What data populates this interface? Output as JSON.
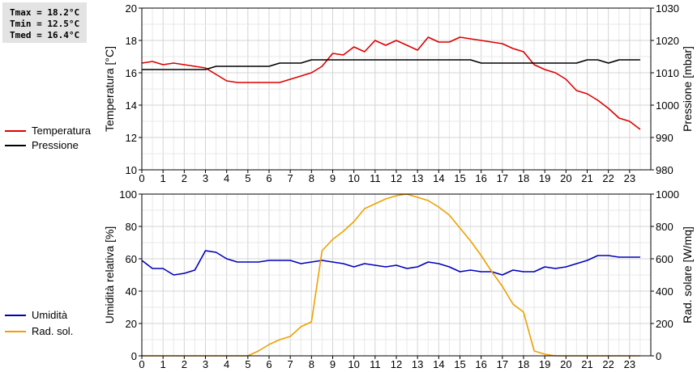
{
  "stats": {
    "tmax": "Tmax = 18.2°C",
    "tmin": "Tmin = 12.5°C",
    "tmed": "Tmed = 16.4°C"
  },
  "legend_top": [
    {
      "label": "Temperatura",
      "color": "#dd0000"
    },
    {
      "label": "Pressione",
      "color": "#000000"
    }
  ],
  "legend_bottom": [
    {
      "label": "Umidità",
      "color": "#0000bb"
    },
    {
      "label": "Rad. sol.",
      "color": "#f0a000"
    }
  ],
  "chart_data": [
    {
      "type": "line",
      "x_ticks": [
        0,
        1,
        2,
        3,
        4,
        5,
        6,
        7,
        8,
        9,
        10,
        11,
        12,
        13,
        14,
        15,
        16,
        17,
        18,
        19,
        20,
        21,
        22,
        23
      ],
      "ylabel": "Temperatura [°C]",
      "ylim": [
        10,
        20
      ],
      "y_ticks": [
        10,
        12,
        14,
        16,
        18,
        20
      ],
      "y2label": "Pressione [mbar]",
      "y2lim": [
        980,
        1030
      ],
      "y2_ticks": [
        980,
        990,
        1000,
        1010,
        1020,
        1030
      ],
      "grid": true,
      "series": [
        {
          "name": "Temperatura",
          "axis": "left",
          "color": "#dd0000",
          "x": [
            0,
            0.5,
            1,
            1.5,
            2,
            2.5,
            3,
            3.5,
            4,
            4.5,
            5,
            5.5,
            6,
            6.5,
            7,
            7.5,
            8,
            8.5,
            9,
            9.5,
            10,
            10.5,
            11,
            11.5,
            12,
            12.5,
            13,
            13.5,
            14,
            14.5,
            15,
            15.5,
            16,
            16.5,
            17,
            17.5,
            18,
            18.5,
            19,
            19.5,
            20,
            20.5,
            21,
            21.5,
            22,
            22.5,
            23,
            23.5
          ],
          "y": [
            16.6,
            16.7,
            16.5,
            16.6,
            16.5,
            16.4,
            16.3,
            15.9,
            15.5,
            15.4,
            15.4,
            15.4,
            15.4,
            15.4,
            15.6,
            15.8,
            16.0,
            16.4,
            17.2,
            17.1,
            17.6,
            17.3,
            18.0,
            17.7,
            18.0,
            17.7,
            17.4,
            18.2,
            17.9,
            17.9,
            18.2,
            18.1,
            18.0,
            17.9,
            17.8,
            17.5,
            17.3,
            16.5,
            16.2,
            16.0,
            15.6,
            14.9,
            14.7,
            14.3,
            13.8,
            13.2,
            13.0,
            12.5
          ]
        },
        {
          "name": "Pressione",
          "axis": "right",
          "color": "#000000",
          "x": [
            0,
            0.5,
            1,
            1.5,
            2,
            2.5,
            3,
            3.5,
            4,
            4.5,
            5,
            5.5,
            6,
            6.5,
            7,
            7.5,
            8,
            8.5,
            9,
            9.5,
            10,
            10.5,
            11,
            11.5,
            12,
            12.5,
            13,
            13.5,
            14,
            14.5,
            15,
            15.5,
            16,
            16.5,
            17,
            17.5,
            18,
            18.5,
            19,
            19.5,
            20,
            20.5,
            21,
            21.5,
            22,
            22.5,
            23,
            23.5
          ],
          "y": [
            1011,
            1011,
            1011,
            1011,
            1011,
            1011,
            1011,
            1012,
            1012,
            1012,
            1012,
            1012,
            1012,
            1013,
            1013,
            1013,
            1014,
            1014,
            1014,
            1014,
            1014,
            1014,
            1014,
            1014,
            1014,
            1014,
            1014,
            1014,
            1014,
            1014,
            1014,
            1014,
            1013,
            1013,
            1013,
            1013,
            1013,
            1013,
            1013,
            1013,
            1013,
            1013,
            1014,
            1014,
            1013,
            1014,
            1014,
            1014
          ]
        }
      ]
    },
    {
      "type": "line",
      "x_ticks": [
        0,
        1,
        2,
        3,
        4,
        5,
        6,
        7,
        8,
        9,
        10,
        11,
        12,
        13,
        14,
        15,
        16,
        17,
        18,
        19,
        20,
        21,
        22,
        23
      ],
      "ylabel": "Umidità relativa [%]",
      "ylim": [
        0,
        100
      ],
      "y_ticks": [
        0,
        20,
        40,
        60,
        80,
        100
      ],
      "y2label": "Rad. solare [W/mq]",
      "y2lim": [
        0,
        1000
      ],
      "y2_ticks": [
        0,
        200,
        400,
        600,
        800,
        1000
      ],
      "grid": true,
      "series": [
        {
          "name": "Umidità",
          "axis": "left",
          "color": "#0000bb",
          "x": [
            0,
            0.5,
            1,
            1.5,
            2,
            2.5,
            3,
            3.5,
            4,
            4.5,
            5,
            5.5,
            6,
            6.5,
            7,
            7.5,
            8,
            8.5,
            9,
            9.5,
            10,
            10.5,
            11,
            11.5,
            12,
            12.5,
            13,
            13.5,
            14,
            14.5,
            15,
            15.5,
            16,
            16.5,
            17,
            17.5,
            18,
            18.5,
            19,
            19.5,
            20,
            20.5,
            21,
            21.5,
            22,
            22.5,
            23,
            23.5
          ],
          "y": [
            59,
            54,
            54,
            50,
            51,
            53,
            65,
            64,
            60,
            58,
            58,
            58,
            59,
            59,
            59,
            57,
            58,
            59,
            58,
            57,
            55,
            57,
            56,
            55,
            56,
            54,
            55,
            58,
            57,
            55,
            52,
            53,
            52,
            52,
            50,
            53,
            52,
            52,
            55,
            54,
            55,
            57,
            59,
            62,
            62,
            61,
            61,
            61
          ]
        },
        {
          "name": "Rad. sol.",
          "axis": "right",
          "color": "#f0a000",
          "x": [
            0,
            0.5,
            1,
            1.5,
            2,
            2.5,
            3,
            3.5,
            4,
            4.5,
            5,
            5.5,
            6,
            6.5,
            7,
            7.5,
            8,
            8.5,
            9,
            9.5,
            10,
            10.5,
            11,
            11.5,
            12,
            12.5,
            13,
            13.5,
            14,
            14.5,
            15,
            15.5,
            16,
            16.5,
            17,
            17.5,
            18,
            18.5,
            19,
            19.5,
            20,
            20.5,
            21,
            21.5,
            22,
            22.5,
            23,
            23.5
          ],
          "y": [
            0,
            0,
            0,
            0,
            0,
            0,
            0,
            0,
            0,
            0,
            0,
            30,
            70,
            100,
            120,
            180,
            210,
            650,
            720,
            770,
            830,
            910,
            940,
            970,
            990,
            1000,
            980,
            960,
            920,
            870,
            790,
            710,
            620,
            520,
            430,
            320,
            270,
            30,
            10,
            0,
            0,
            0,
            0,
            0,
            0,
            0,
            0,
            0
          ]
        }
      ]
    }
  ]
}
